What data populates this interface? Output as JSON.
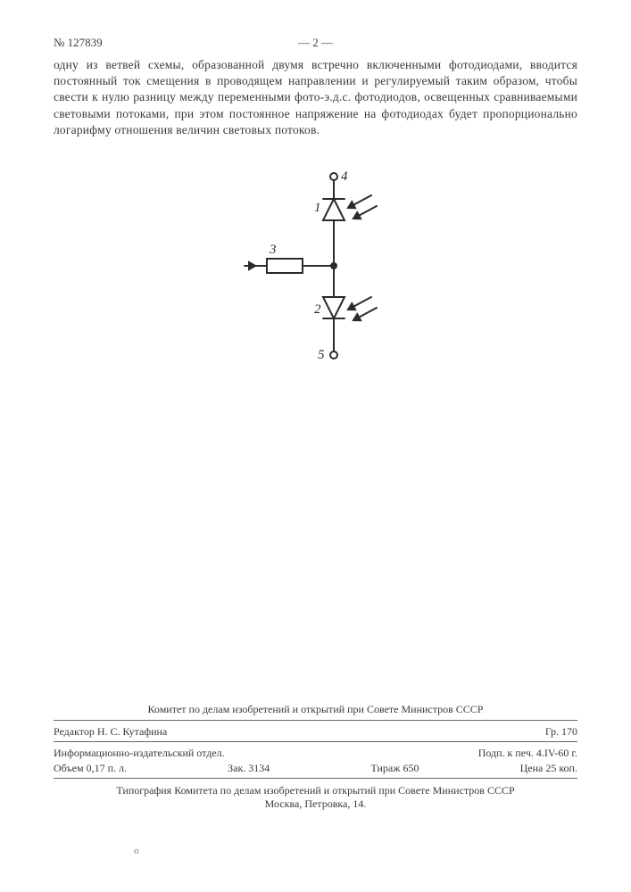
{
  "header": {
    "doc_number": "№ 127839",
    "page_marker": "— 2 —"
  },
  "body": {
    "paragraph": "одну из ветвей схемы, образованной двумя встречно включенными фотодиодами, вводится постоянный ток смещения в проводящем направлении и регулируемый таким образом, чтобы свести к нулю разницу между переменными фото-э.д.с. фотодиодов, освещенных сравниваемыми световыми потоками, при этом постоянное напряжение на фотодиодах будет пропорционально логарифму отношения величин световых потоков."
  },
  "diagram": {
    "stroke": "#2b2b2b",
    "stroke_width": 2,
    "labels": {
      "n1": "1",
      "n2": "2",
      "n3": "3",
      "n4": "4",
      "n5": "5"
    }
  },
  "footer": {
    "committee": "Комитет по делам изобретений и открытий при Совете Министров СССР",
    "editor_label": "Редактор",
    "editor_name": "Н. С. Кутафина",
    "group": "Гр. 170",
    "pub_dept": "Информационно-издательский отдел.",
    "volume": "Объем 0,17 п. л.",
    "order": "Зак. 3134",
    "tirazh": "Тираж 650",
    "sign_date": "Подп. к печ. 4.IV-60 г.",
    "price": "Цена 25 коп.",
    "typography1": "Типография Комитета по делам изобретений и открытий при Совете Министров СССР",
    "typography2": "Москва, Петровка, 14."
  },
  "misc": {
    "stray": "о"
  }
}
